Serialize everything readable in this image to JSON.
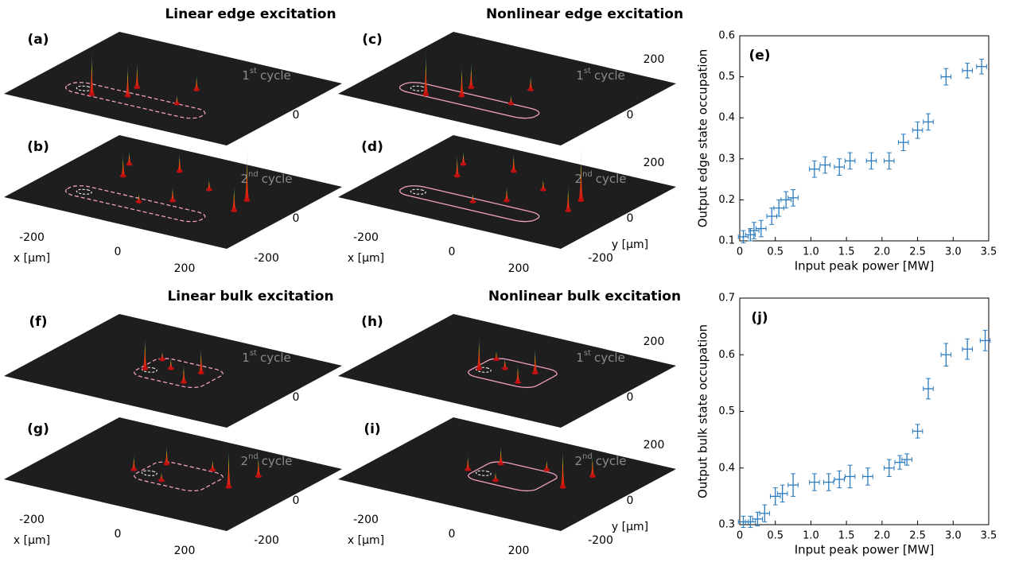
{
  "panels": {
    "titles": [
      "Linear edge excitation",
      "Nonlinear edge excitation",
      "Linear bulk excitation",
      "Nonlinear bulk excitation"
    ],
    "labels": [
      "(a)",
      "(b)",
      "(c)",
      "(d)",
      "(f)",
      "(g)",
      "(h)",
      "(i)"
    ],
    "cycles": [
      {
        "n": "1",
        "sup": "st",
        "word": "cycle"
      },
      {
        "n": "2",
        "sup": "nd",
        "word": "cycle"
      }
    ],
    "x_label": "x [µm]",
    "y_label": "y [µm]",
    "ticks": [
      -200,
      0,
      200
    ]
  },
  "chart_data": [
    {
      "type": "errorbar",
      "label": "(e)",
      "x_label": "Input peak power [MW]",
      "y_label": "Output edge state occupation",
      "color": "#2b7bbf",
      "x": [
        0.05,
        0.15,
        0.2,
        0.3,
        0.45,
        0.55,
        0.65,
        0.75,
        1.05,
        1.2,
        1.4,
        1.55,
        1.85,
        2.1,
        2.3,
        2.5,
        2.65,
        2.9,
        3.2,
        3.4
      ],
      "values": [
        0.11,
        0.115,
        0.125,
        0.13,
        0.16,
        0.18,
        0.2,
        0.205,
        0.275,
        0.285,
        0.28,
        0.295,
        0.295,
        0.295,
        0.34,
        0.37,
        0.39,
        0.5,
        0.515,
        0.525
      ],
      "xerr": [
        0.07,
        0.07,
        0.07,
        0.07,
        0.07,
        0.07,
        0.07,
        0.07,
        0.07,
        0.07,
        0.07,
        0.07,
        0.07,
        0.07,
        0.07,
        0.07,
        0.07,
        0.07,
        0.07,
        0.07
      ],
      "yerr": [
        0.015,
        0.015,
        0.02,
        0.02,
        0.02,
        0.02,
        0.02,
        0.02,
        0.02,
        0.02,
        0.02,
        0.02,
        0.02,
        0.02,
        0.02,
        0.02,
        0.02,
        0.02,
        0.018,
        0.018
      ],
      "xlim": [
        0,
        3.5
      ],
      "xticks": [
        0,
        0.5,
        {
          "value": 1,
          "label": "1.0"
        },
        1.5,
        {
          "value": 2,
          "label": "2.0"
        },
        2.5,
        {
          "value": 3,
          "label": "3.0"
        },
        3.5
      ],
      "ylim": [
        0.1,
        0.6
      ],
      "yticks": [
        0.1,
        0.2,
        0.3,
        0.4,
        0.5,
        0.6
      ]
    },
    {
      "type": "errorbar",
      "label": "(j)",
      "x_label": "Input peak power [MW]",
      "y_label": "Output bulk state occupation",
      "color": "#2b7bbf",
      "x": [
        0.05,
        0.15,
        0.25,
        0.35,
        0.5,
        0.6,
        0.75,
        1.05,
        1.25,
        1.4,
        1.55,
        1.8,
        2.1,
        2.25,
        2.35,
        2.5,
        2.65,
        2.9,
        3.2,
        3.45
      ],
      "values": [
        0.305,
        0.305,
        0.31,
        0.32,
        0.35,
        0.355,
        0.37,
        0.375,
        0.375,
        0.38,
        0.385,
        0.385,
        0.4,
        0.41,
        0.415,
        0.465,
        0.54,
        0.6,
        0.61,
        0.625
      ],
      "xerr": [
        0.07,
        0.07,
        0.07,
        0.07,
        0.07,
        0.07,
        0.07,
        0.07,
        0.07,
        0.07,
        0.07,
        0.07,
        0.07,
        0.07,
        0.07,
        0.07,
        0.07,
        0.07,
        0.07,
        0.07
      ],
      "yerr": [
        0.01,
        0.01,
        0.012,
        0.015,
        0.015,
        0.015,
        0.02,
        0.015,
        0.015,
        0.015,
        0.02,
        0.015,
        0.015,
        0.012,
        0.01,
        0.012,
        0.018,
        0.02,
        0.018,
        0.018
      ],
      "xlim": [
        0,
        3.5
      ],
      "xticks": [
        0,
        0.5,
        {
          "value": 1,
          "label": "1.0"
        },
        1.5,
        {
          "value": 2,
          "label": "2.0"
        },
        2.5,
        {
          "value": 3,
          "label": "3.0"
        },
        3.5
      ],
      "ylim": [
        0.3,
        0.7
      ],
      "yticks": [
        0.3,
        0.4,
        0.5,
        0.6,
        0.7
      ]
    }
  ]
}
